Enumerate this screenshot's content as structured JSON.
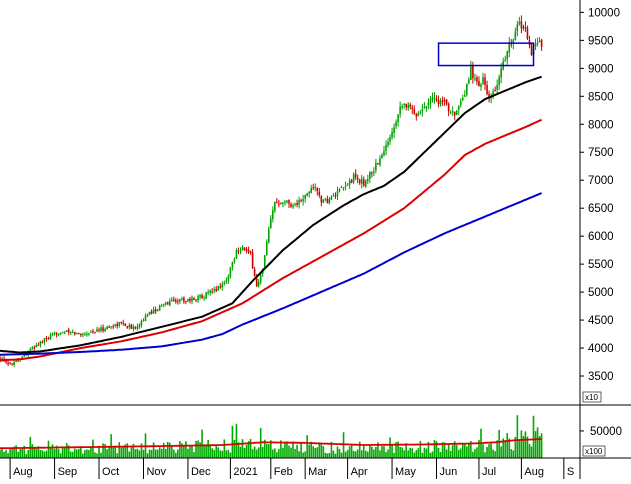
{
  "chart_data": [
    {
      "type": "candlestick",
      "panel": "price",
      "y_ticks": [
        3500,
        4000,
        4500,
        5000,
        5500,
        6000,
        6500,
        7000,
        7500,
        8000,
        8500,
        9000,
        9500,
        10000
      ],
      "ylim": [
        3250,
        10150
      ],
      "y_multiplier_label": "x10",
      "x_axis": {
        "unit": "trading day index",
        "xlim": [
          0,
          287
        ],
        "tick_labels": [
          "Aug",
          "Sep",
          "Oct",
          "Nov",
          "Dec",
          "2021",
          "Feb",
          "Mar",
          "Apr",
          "May",
          "Jun",
          "Jul",
          "Aug",
          "S"
        ],
        "tick_positions": [
          5,
          27,
          49,
          71,
          93,
          114,
          134,
          151,
          172,
          194,
          216,
          237,
          258,
          279
        ]
      },
      "close_anchors": {
        "x": [
          0,
          4,
          10,
          20,
          30,
          40,
          50,
          60,
          66,
          75,
          85,
          95,
          105,
          112,
          117,
          120,
          124,
          127,
          130,
          133,
          136,
          140,
          145,
          150,
          155,
          160,
          165,
          170,
          175,
          180,
          185,
          190,
          195,
          199,
          202,
          206,
          210,
          213,
          218,
          222,
          226,
          230,
          233,
          236,
          239,
          242,
          245,
          248,
          251,
          254,
          257,
          260,
          263,
          266,
          268
        ],
        "y": [
          3820,
          3700,
          3820,
          4100,
          4300,
          4250,
          4330,
          4450,
          4350,
          4650,
          4850,
          4870,
          5000,
          5200,
          5750,
          5800,
          5650,
          5100,
          5400,
          6100,
          6600,
          6650,
          6550,
          6650,
          6900,
          6600,
          6700,
          6850,
          7050,
          6950,
          7200,
          7500,
          8000,
          8400,
          8300,
          8200,
          8300,
          8500,
          8400,
          8300,
          8200,
          8500,
          9000,
          8700,
          8800,
          8400,
          8600,
          9000,
          9300,
          9600,
          9800,
          9700,
          9300,
          9450,
          9450
        ]
      },
      "moving_averages": [
        {
          "color": "#000000",
          "x": [
            0,
            10,
            20,
            40,
            60,
            80,
            100,
            115,
            125,
            140,
            155,
            170,
            180,
            190,
            200,
            210,
            220,
            230,
            240,
            250,
            260,
            268
          ],
          "y": [
            3950,
            3920,
            3940,
            4050,
            4200,
            4380,
            4560,
            4800,
            5200,
            5750,
            6200,
            6550,
            6750,
            6900,
            7150,
            7500,
            7850,
            8200,
            8450,
            8600,
            8750,
            8850
          ]
        },
        {
          "color": "#dd0000",
          "x": [
            0,
            10,
            20,
            40,
            60,
            80,
            100,
            120,
            140,
            160,
            180,
            200,
            220,
            230,
            240,
            250,
            260,
            268
          ],
          "y": [
            3780,
            3800,
            3850,
            4000,
            4120,
            4280,
            4480,
            4800,
            5250,
            5650,
            6050,
            6500,
            7100,
            7450,
            7650,
            7800,
            7950,
            8080
          ]
        },
        {
          "color": "#0000cc",
          "x": [
            0,
            20,
            40,
            60,
            80,
            100,
            110,
            120,
            140,
            160,
            180,
            200,
            220,
            240,
            260,
            268
          ],
          "y": [
            3880,
            3900,
            3930,
            3970,
            4030,
            4150,
            4250,
            4420,
            4710,
            5020,
            5330,
            5710,
            6050,
            6350,
            6650,
            6770
          ]
        }
      ],
      "annotation": {
        "shape": "rectangle",
        "color": "#0000cc",
        "x_range": [
          217,
          264
        ],
        "y_range": [
          9050,
          9450
        ]
      }
    },
    {
      "type": "bar",
      "panel": "volume",
      "y_ticks": [
        50000
      ],
      "y_tick_labels": [
        "50000"
      ],
      "ylim": [
        0,
        85000
      ],
      "y_multiplier_label": "x100",
      "bar_color": "#00aa00",
      "volume_anchors": {
        "x": [
          0,
          30,
          60,
          100,
          120,
          140,
          160,
          180,
          200,
          220,
          235,
          245,
          255,
          262,
          268
        ],
        "y": [
          18000,
          20000,
          22000,
          25000,
          30000,
          25000,
          22000,
          24000,
          23000,
          27000,
          26000,
          30000,
          38000,
          42000,
          50000
        ]
      },
      "volume_ma": {
        "color": "#dd0000",
        "x": [
          0,
          40,
          80,
          110,
          130,
          150,
          180,
          210,
          235,
          245,
          255,
          268
        ],
        "y": [
          18000,
          20000,
          22000,
          24000,
          29000,
          28000,
          24000,
          25000,
          27000,
          29000,
          33000,
          35000
        ]
      }
    }
  ]
}
